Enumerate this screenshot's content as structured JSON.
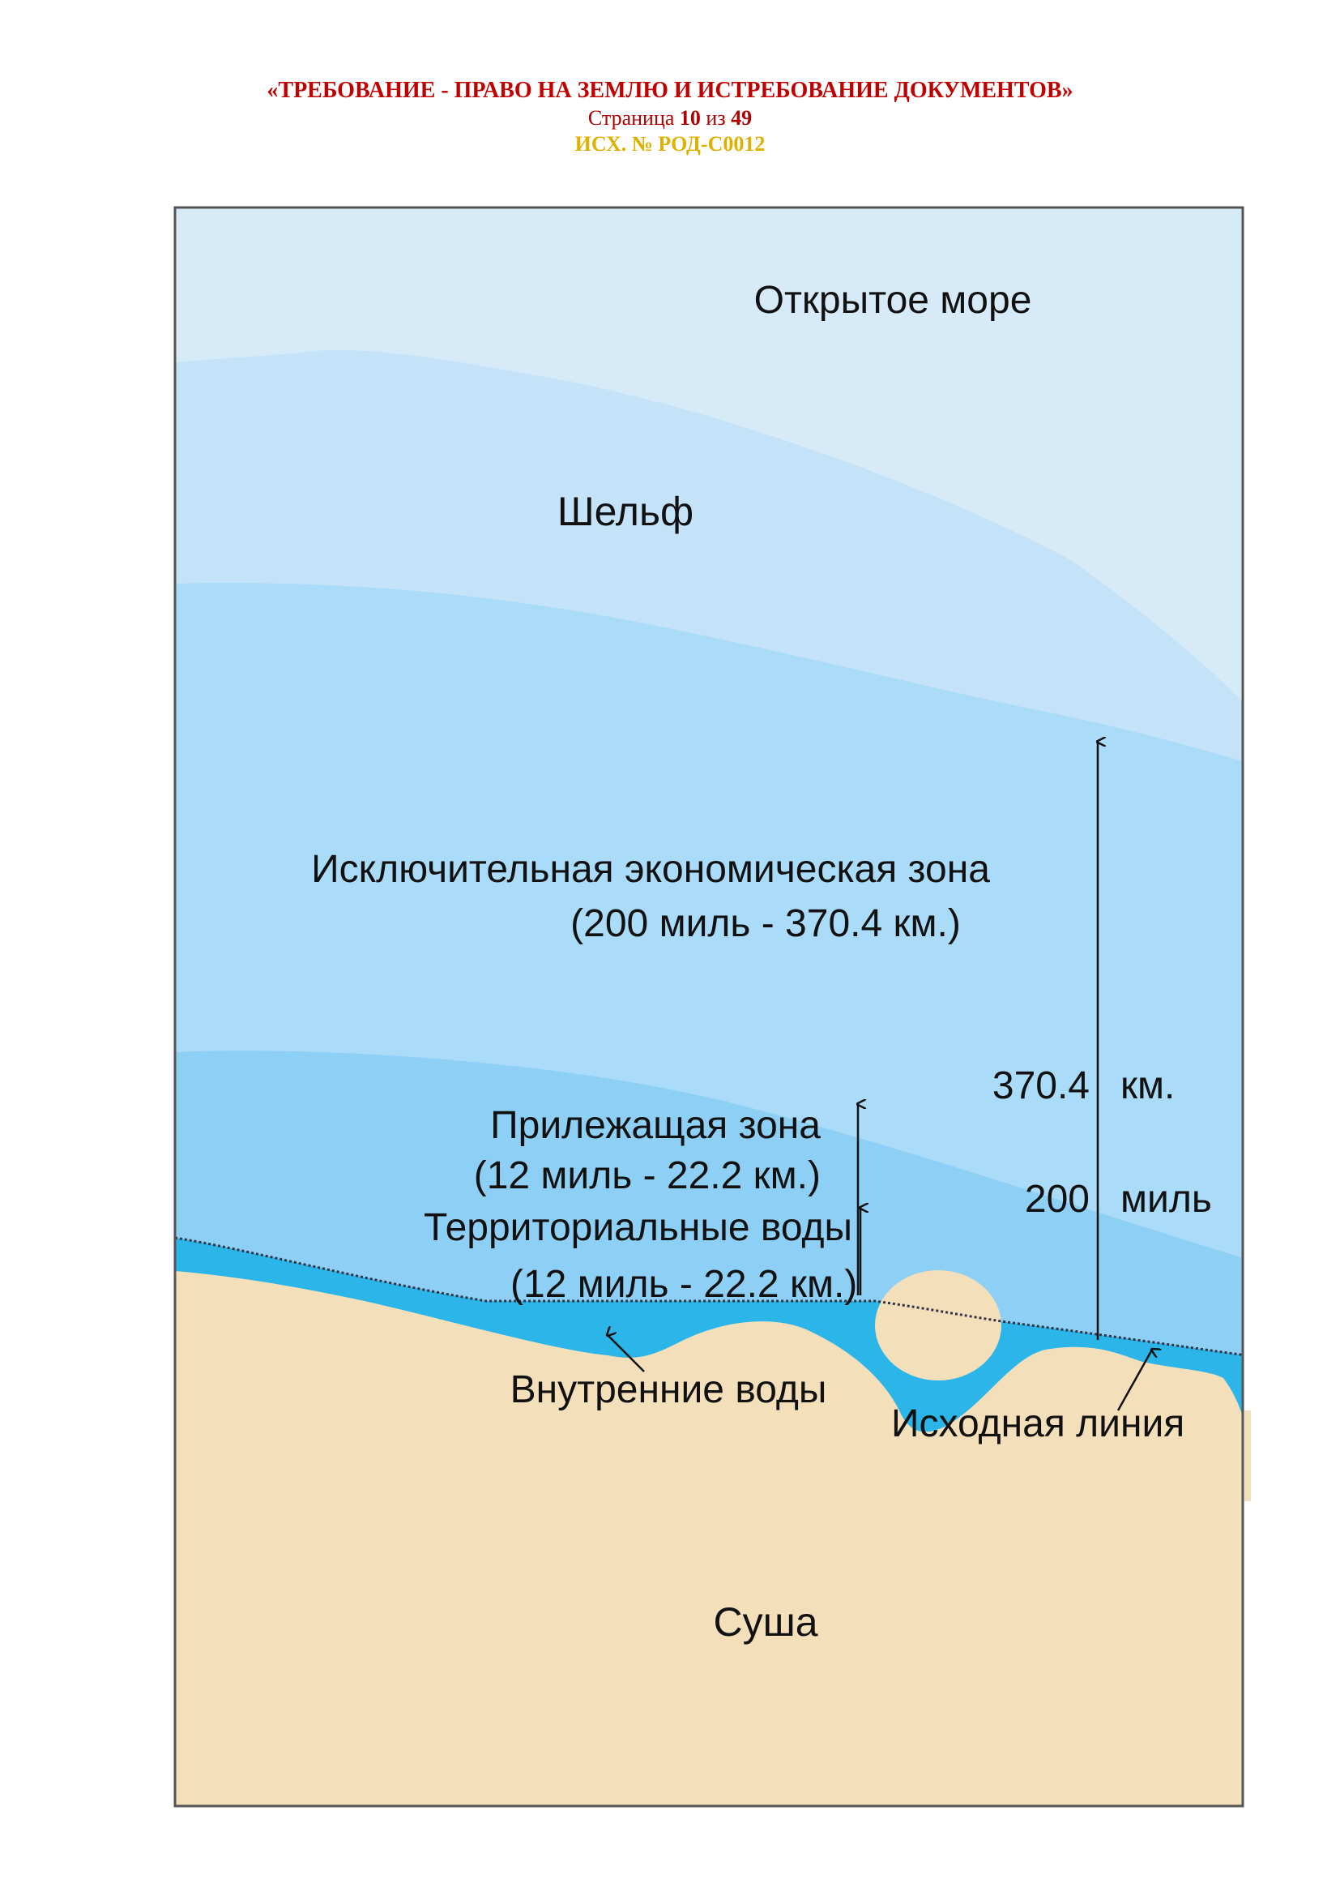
{
  "header": {
    "title": "«ТРЕБОВАНИЕ - ПРАВО НА ЗЕМЛЮ И ИСТРЕБОВАНИЕ ДОКУМЕНТОВ»",
    "page_prefix": "Страница",
    "page_current": "10",
    "page_sep": "из",
    "page_total": "49",
    "ref": "ИСХ.  № РОД-С0012"
  },
  "diagram": {
    "high_seas": "Открытое море",
    "shelf": "Шельф",
    "eez_title": "Исключительная экономическая зона",
    "eez_range": "(200 миль - 370.4 км.)",
    "eez_km_value": "370.4",
    "eez_km_unit": "км.",
    "eez_miles_value": "200",
    "eez_miles_unit": "миль",
    "contiguous_title": "Прилежащая зона",
    "contiguous_range": "(12 миль - 22.2 км.)",
    "territorial_title": "Территориальные воды",
    "territorial_range": "(12 миль - 22.2 км.)",
    "internal_waters": "Внутренние воды",
    "baseline": "Исходная линия",
    "land": "Суша"
  },
  "colors": {
    "high_seas": "#d6eaf8",
    "shelf": "#c4e3f8",
    "eez": "#aadbf8",
    "contiguous": "#8ecff5",
    "internal_waters": "#2bb5e8",
    "land": "#f3e0bb",
    "header_title": "#c00000",
    "header_ref": "#e0b000"
  }
}
